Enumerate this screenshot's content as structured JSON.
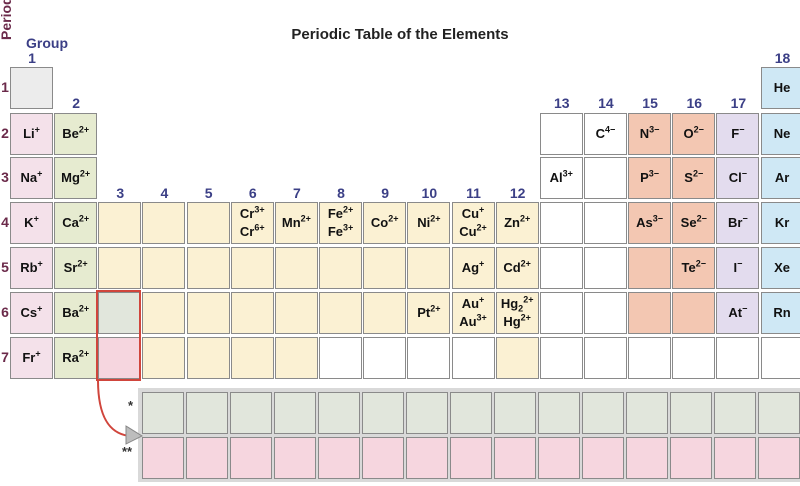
{
  "title": "Periodic Table of the Elements",
  "axis": {
    "period_label": "Period",
    "group_label": "Group"
  },
  "groups": [
    "1",
    "2",
    "3",
    "4",
    "5",
    "6",
    "7",
    "8",
    "9",
    "10",
    "11",
    "12",
    "13",
    "14",
    "15",
    "16",
    "17",
    "18"
  ],
  "periods": [
    "1",
    "2",
    "3",
    "4",
    "5",
    "6",
    "7"
  ],
  "markers": {
    "lanthanides": "*",
    "actinides": "**"
  },
  "colors": {
    "hydrogen": "#ececec",
    "alkali": "#f4e1ea",
    "alkaline_earth": "#e6ebd0",
    "transition": "#fbf1d3",
    "lanthanide": "#e1e6dc",
    "actinide": "#f6d6df",
    "nonmetal": "#f3c7b2",
    "halogen": "#e3dcee",
    "noble_gas": "#cfe8f5",
    "highlight": "#d0453c"
  },
  "cells": [
    {
      "p": 1,
      "g": 1,
      "c": "g-h",
      "ions": []
    },
    {
      "p": 1,
      "g": 18,
      "c": "g-ng",
      "ions": [
        {
          "s": "He",
          "q": ""
        }
      ]
    },
    {
      "p": 2,
      "g": 1,
      "c": "g-1",
      "ions": [
        {
          "s": "Li",
          "q": "+"
        }
      ]
    },
    {
      "p": 2,
      "g": 2,
      "c": "g-2",
      "ions": [
        {
          "s": "Be",
          "q": "2+"
        }
      ]
    },
    {
      "p": 2,
      "g": 13,
      "c": "g-white",
      "ions": []
    },
    {
      "p": 2,
      "g": 14,
      "c": "g-white",
      "ions": [
        {
          "s": "C",
          "q": "4−"
        }
      ]
    },
    {
      "p": 2,
      "g": 15,
      "c": "g-nm",
      "ions": [
        {
          "s": "N",
          "q": "3−"
        }
      ]
    },
    {
      "p": 2,
      "g": 16,
      "c": "g-nm",
      "ions": [
        {
          "s": "O",
          "q": "2−"
        }
      ]
    },
    {
      "p": 2,
      "g": 17,
      "c": "g-hal",
      "ions": [
        {
          "s": "F",
          "q": "−"
        }
      ]
    },
    {
      "p": 2,
      "g": 18,
      "c": "g-ng",
      "ions": [
        {
          "s": "Ne",
          "q": ""
        }
      ]
    },
    {
      "p": 3,
      "g": 1,
      "c": "g-1",
      "ions": [
        {
          "s": "Na",
          "q": "+"
        }
      ]
    },
    {
      "p": 3,
      "g": 2,
      "c": "g-2",
      "ions": [
        {
          "s": "Mg",
          "q": "2+"
        }
      ]
    },
    {
      "p": 3,
      "g": 13,
      "c": "g-white",
      "ions": [
        {
          "s": "Al",
          "q": "3+"
        }
      ]
    },
    {
      "p": 3,
      "g": 14,
      "c": "g-white",
      "ions": []
    },
    {
      "p": 3,
      "g": 15,
      "c": "g-nm",
      "ions": [
        {
          "s": "P",
          "q": "3−"
        }
      ]
    },
    {
      "p": 3,
      "g": 16,
      "c": "g-nm",
      "ions": [
        {
          "s": "S",
          "q": "2−"
        }
      ]
    },
    {
      "p": 3,
      "g": 17,
      "c": "g-hal",
      "ions": [
        {
          "s": "Cl",
          "q": "−"
        }
      ]
    },
    {
      "p": 3,
      "g": 18,
      "c": "g-ng",
      "ions": [
        {
          "s": "Ar",
          "q": ""
        }
      ]
    },
    {
      "p": 4,
      "g": 1,
      "c": "g-1",
      "ions": [
        {
          "s": "K",
          "q": "+"
        }
      ]
    },
    {
      "p": 4,
      "g": 2,
      "c": "g-2",
      "ions": [
        {
          "s": "Ca",
          "q": "2+"
        }
      ]
    },
    {
      "p": 4,
      "g": 3,
      "c": "g-tm",
      "ions": []
    },
    {
      "p": 4,
      "g": 4,
      "c": "g-tm",
      "ions": []
    },
    {
      "p": 4,
      "g": 5,
      "c": "g-tm",
      "ions": []
    },
    {
      "p": 4,
      "g": 6,
      "c": "g-tm",
      "ions": [
        {
          "s": "Cr",
          "q": "3+"
        },
        {
          "s": "Cr",
          "q": "6+"
        }
      ]
    },
    {
      "p": 4,
      "g": 7,
      "c": "g-tm",
      "ions": [
        {
          "s": "Mn",
          "q": "2+"
        }
      ]
    },
    {
      "p": 4,
      "g": 8,
      "c": "g-tm",
      "ions": [
        {
          "s": "Fe",
          "q": "2+"
        },
        {
          "s": "Fe",
          "q": "3+"
        }
      ]
    },
    {
      "p": 4,
      "g": 9,
      "c": "g-tm",
      "ions": [
        {
          "s": "Co",
          "q": "2+"
        }
      ]
    },
    {
      "p": 4,
      "g": 10,
      "c": "g-tm",
      "ions": [
        {
          "s": "Ni",
          "q": "2+"
        }
      ]
    },
    {
      "p": 4,
      "g": 11,
      "c": "g-tm",
      "ions": [
        {
          "s": "Cu",
          "q": "+"
        },
        {
          "s": "Cu",
          "q": "2+"
        }
      ]
    },
    {
      "p": 4,
      "g": 12,
      "c": "g-tm",
      "ions": [
        {
          "s": "Zn",
          "q": "2+"
        }
      ]
    },
    {
      "p": 4,
      "g": 13,
      "c": "g-white",
      "ions": []
    },
    {
      "p": 4,
      "g": 14,
      "c": "g-white",
      "ions": []
    },
    {
      "p": 4,
      "g": 15,
      "c": "g-nm",
      "ions": [
        {
          "s": "As",
          "q": "3−"
        }
      ]
    },
    {
      "p": 4,
      "g": 16,
      "c": "g-nm",
      "ions": [
        {
          "s": "Se",
          "q": "2−"
        }
      ]
    },
    {
      "p": 4,
      "g": 17,
      "c": "g-hal",
      "ions": [
        {
          "s": "Br",
          "q": "−"
        }
      ]
    },
    {
      "p": 4,
      "g": 18,
      "c": "g-ng",
      "ions": [
        {
          "s": "Kr",
          "q": ""
        }
      ]
    },
    {
      "p": 5,
      "g": 1,
      "c": "g-1",
      "ions": [
        {
          "s": "Rb",
          "q": "+"
        }
      ]
    },
    {
      "p": 5,
      "g": 2,
      "c": "g-2",
      "ions": [
        {
          "s": "Sr",
          "q": "2+"
        }
      ]
    },
    {
      "p": 5,
      "g": 3,
      "c": "g-tm",
      "ions": []
    },
    {
      "p": 5,
      "g": 4,
      "c": "g-tm",
      "ions": []
    },
    {
      "p": 5,
      "g": 5,
      "c": "g-tm",
      "ions": []
    },
    {
      "p": 5,
      "g": 6,
      "c": "g-tm",
      "ions": []
    },
    {
      "p": 5,
      "g": 7,
      "c": "g-tm",
      "ions": []
    },
    {
      "p": 5,
      "g": 8,
      "c": "g-tm",
      "ions": []
    },
    {
      "p": 5,
      "g": 9,
      "c": "g-tm",
      "ions": []
    },
    {
      "p": 5,
      "g": 10,
      "c": "g-tm",
      "ions": []
    },
    {
      "p": 5,
      "g": 11,
      "c": "g-tm",
      "ions": [
        {
          "s": "Ag",
          "q": "+"
        }
      ]
    },
    {
      "p": 5,
      "g": 12,
      "c": "g-tm",
      "ions": [
        {
          "s": "Cd",
          "q": "2+"
        }
      ]
    },
    {
      "p": 5,
      "g": 13,
      "c": "g-white",
      "ions": []
    },
    {
      "p": 5,
      "g": 14,
      "c": "g-white",
      "ions": []
    },
    {
      "p": 5,
      "g": 15,
      "c": "g-nm",
      "ions": []
    },
    {
      "p": 5,
      "g": 16,
      "c": "g-nm",
      "ions": [
        {
          "s": "Te",
          "q": "2−"
        }
      ]
    },
    {
      "p": 5,
      "g": 17,
      "c": "g-hal",
      "ions": [
        {
          "s": "I",
          "q": "−"
        }
      ]
    },
    {
      "p": 5,
      "g": 18,
      "c": "g-ng",
      "ions": [
        {
          "s": "Xe",
          "q": ""
        }
      ]
    },
    {
      "p": 6,
      "g": 1,
      "c": "g-1",
      "ions": [
        {
          "s": "Cs",
          "q": "+"
        }
      ]
    },
    {
      "p": 6,
      "g": 2,
      "c": "g-2",
      "ions": [
        {
          "s": "Ba",
          "q": "2+"
        }
      ]
    },
    {
      "p": 6,
      "g": 3,
      "c": "g-lan",
      "ions": []
    },
    {
      "p": 6,
      "g": 4,
      "c": "g-tm",
      "ions": []
    },
    {
      "p": 6,
      "g": 5,
      "c": "g-tm",
      "ions": []
    },
    {
      "p": 6,
      "g": 6,
      "c": "g-tm",
      "ions": []
    },
    {
      "p": 6,
      "g": 7,
      "c": "g-tm",
      "ions": []
    },
    {
      "p": 6,
      "g": 8,
      "c": "g-tm",
      "ions": []
    },
    {
      "p": 6,
      "g": 9,
      "c": "g-tm",
      "ions": []
    },
    {
      "p": 6,
      "g": 10,
      "c": "g-tm",
      "ions": [
        {
          "s": "Pt",
          "q": "2+"
        }
      ]
    },
    {
      "p": 6,
      "g": 11,
      "c": "g-tm",
      "ions": [
        {
          "s": "Au",
          "q": "+"
        },
        {
          "s": "Au",
          "q": "3+"
        }
      ]
    },
    {
      "p": 6,
      "g": 12,
      "c": "g-tm",
      "ions": [
        {
          "s": "Hg",
          "sub": "2",
          "q": "2+"
        },
        {
          "s": "Hg",
          "q": "2+"
        }
      ]
    },
    {
      "p": 6,
      "g": 13,
      "c": "g-white",
      "ions": []
    },
    {
      "p": 6,
      "g": 14,
      "c": "g-white",
      "ions": []
    },
    {
      "p": 6,
      "g": 15,
      "c": "g-nm",
      "ions": []
    },
    {
      "p": 6,
      "g": 16,
      "c": "g-nm",
      "ions": []
    },
    {
      "p": 6,
      "g": 17,
      "c": "g-hal",
      "ions": [
        {
          "s": "At",
          "q": "−"
        }
      ]
    },
    {
      "p": 6,
      "g": 18,
      "c": "g-ng",
      "ions": [
        {
          "s": "Rn",
          "q": ""
        }
      ]
    },
    {
      "p": 7,
      "g": 1,
      "c": "g-1",
      "ions": [
        {
          "s": "Fr",
          "q": "+"
        }
      ]
    },
    {
      "p": 7,
      "g": 2,
      "c": "g-2",
      "ions": [
        {
          "s": "Ra",
          "q": "2+"
        }
      ]
    },
    {
      "p": 7,
      "g": 3,
      "c": "g-act",
      "ions": []
    },
    {
      "p": 7,
      "g": 4,
      "c": "g-tm",
      "ions": []
    },
    {
      "p": 7,
      "g": 5,
      "c": "g-tm",
      "ions": []
    },
    {
      "p": 7,
      "g": 6,
      "c": "g-tm",
      "ions": []
    },
    {
      "p": 7,
      "g": 7,
      "c": "g-tm",
      "ions": []
    },
    {
      "p": 7,
      "g": 8,
      "c": "g-white",
      "ions": []
    },
    {
      "p": 7,
      "g": 9,
      "c": "g-white",
      "ions": []
    },
    {
      "p": 7,
      "g": 10,
      "c": "g-white",
      "ions": []
    },
    {
      "p": 7,
      "g": 11,
      "c": "g-white",
      "ions": []
    },
    {
      "p": 7,
      "g": 12,
      "c": "g-tm",
      "ions": []
    },
    {
      "p": 7,
      "g": 13,
      "c": "g-white",
      "ions": []
    },
    {
      "p": 7,
      "g": 14,
      "c": "g-white",
      "ions": []
    },
    {
      "p": 7,
      "g": 15,
      "c": "g-white",
      "ions": []
    },
    {
      "p": 7,
      "g": 16,
      "c": "g-white",
      "ions": []
    },
    {
      "p": 7,
      "g": 17,
      "c": "g-white",
      "ions": []
    },
    {
      "p": 7,
      "g": 18,
      "c": "g-white",
      "ions": []
    }
  ]
}
